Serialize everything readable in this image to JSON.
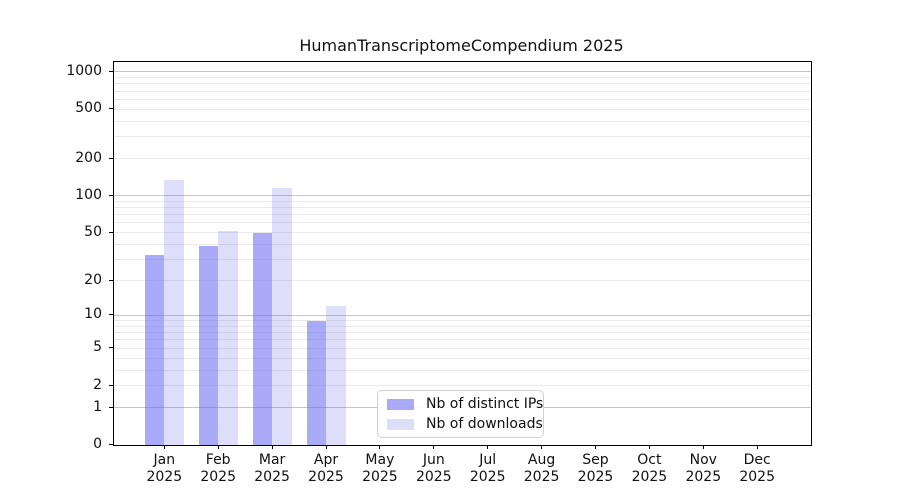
{
  "chart_data": {
    "type": "bar",
    "title": "HumanTranscriptomeCompendium 2025",
    "categories": [
      "Jan 2025",
      "Feb 2025",
      "Mar 2025",
      "Apr 2025",
      "May 2025",
      "Jun 2025",
      "Jul 2025",
      "Aug 2025",
      "Sep 2025",
      "Oct 2025",
      "Nov 2025",
      "Dec 2025"
    ],
    "x_tick_months": [
      "Jan",
      "Feb",
      "Mar",
      "Apr",
      "May",
      "Jun",
      "Jul",
      "Aug",
      "Sep",
      "Oct",
      "Nov",
      "Dec"
    ],
    "x_tick_year": "2025",
    "series": [
      {
        "name": "Nb of distinct IPs",
        "hex": "#a9a9f4",
        "rgba": "rgba(100,100,238,0.55)",
        "values": [
          33,
          39,
          50,
          9,
          0,
          0,
          0,
          0,
          0,
          0,
          0,
          0
        ]
      },
      {
        "name": "Nb of downloads",
        "hex": "#dcdcf9",
        "rgba": "rgba(100,100,238,0.21)",
        "values": [
          135,
          52,
          115,
          12,
          0,
          0,
          0,
          0,
          0,
          0,
          0,
          0
        ]
      }
    ],
    "xlabel": "",
    "ylabel": "",
    "yscale": "log10(1+y)",
    "yticks": [
      0,
      1,
      2,
      5,
      10,
      20,
      50,
      100,
      200,
      500,
      1000
    ],
    "ytick_labels": [
      "0",
      "1",
      "2",
      "5",
      "10",
      "20",
      "50",
      "100",
      "200",
      "500",
      "1000"
    ],
    "ylim": [
      0,
      1200
    ],
    "grid": {
      "orientation": "horizontal",
      "major_at": [
        1,
        10,
        100,
        1000
      ],
      "minor_multiples": [
        2,
        3,
        4,
        5,
        6,
        7,
        8,
        9
      ],
      "minor_decades": [
        1,
        10,
        100
      ],
      "major_color": "#c6c6c6",
      "minor_color": "#eaeaea"
    },
    "legend": {
      "position": "inside-bottom-center",
      "entries": [
        "Nb of distinct IPs",
        "Nb of downloads"
      ]
    }
  },
  "colors": {
    "background": "#ffffff",
    "spine": "#000000",
    "text": "#111111"
  }
}
